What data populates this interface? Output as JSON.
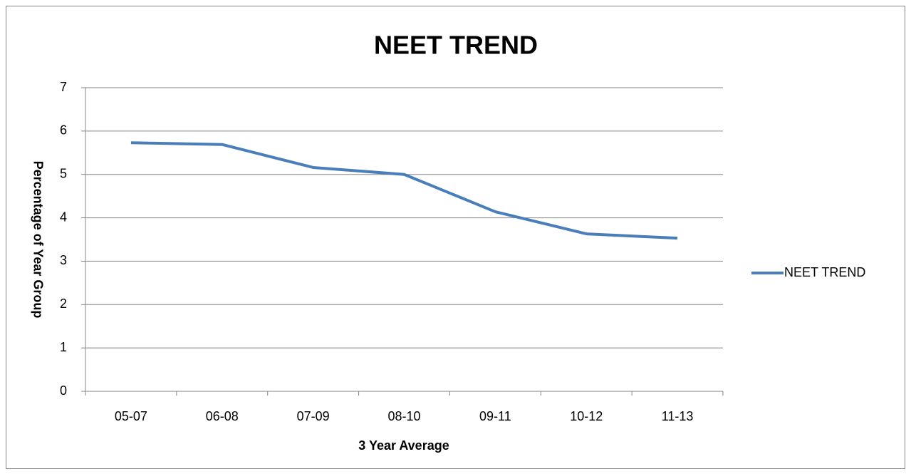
{
  "chart_data": {
    "type": "line",
    "title": "NEET TREND",
    "x_label": "3 Year Average",
    "y_label": "Percentage of Year Group",
    "categories": [
      "05-07",
      "06-08",
      "07-09",
      "08-10",
      "09-11",
      "10-12",
      "11-13"
    ],
    "series": [
      {
        "name": "NEET TREND",
        "color": "#4a7ebb",
        "values": [
          5.73,
          5.69,
          5.16,
          5.0,
          4.14,
          3.63,
          3.53
        ]
      }
    ],
    "ylim": [
      0,
      7
    ],
    "yticks": [
      0,
      1,
      2,
      3,
      4,
      5,
      6,
      7
    ],
    "grid": true,
    "legend": "right"
  }
}
